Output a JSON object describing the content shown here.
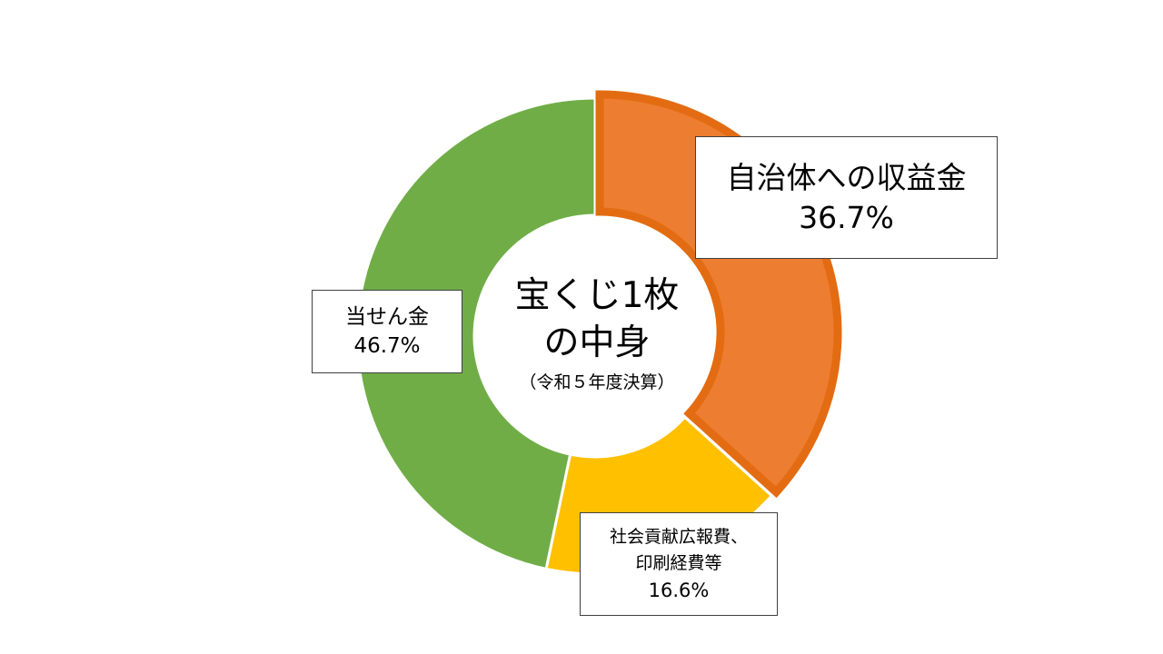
{
  "chart_data": {
    "type": "pie",
    "donut": true,
    "center_text": {
      "line1": "宝くじ1枚",
      "line2": "の中身",
      "subtitle": "（令和５年度決算）"
    },
    "slices": [
      {
        "label": "自治体への収益金",
        "value": 36.7,
        "display": "36.7%",
        "color": "#ED7D31",
        "highlight_border": "#E36C12",
        "highlighted": true
      },
      {
        "label": "社会貢献広報費、印刷経費等",
        "label_lines": [
          "社会貢献広報費、",
          "印刷経費等"
        ],
        "value": 16.6,
        "display": "16.6%",
        "color": "#FFC000",
        "highlighted": false
      },
      {
        "label": "当せん金",
        "value": 46.7,
        "display": "46.7%",
        "color": "#70AD47",
        "highlighted": false
      }
    ],
    "start_angle_deg": 0,
    "direction": "clockwise",
    "legend": "none"
  }
}
